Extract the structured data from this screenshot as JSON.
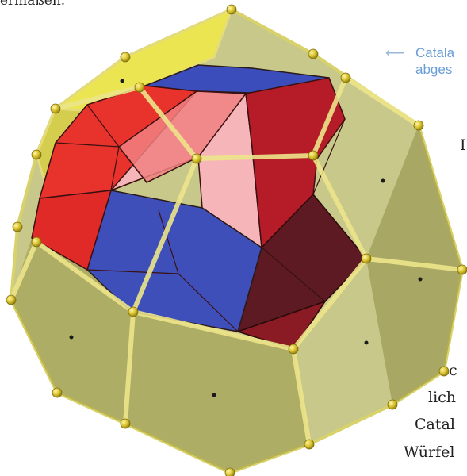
{
  "page": {
    "top_text": "ermaßen.",
    "caption": {
      "arrow": "⟵",
      "line1": "Catala",
      "line2": "abges"
    },
    "fragments": [
      {
        "id": "f1",
        "text": "I"
      },
      {
        "id": "f2",
        "text": "c"
      },
      {
        "id": "f3",
        "text": "lich"
      },
      {
        "id": "f4",
        "text": "Catal"
      },
      {
        "id": "f5",
        "text": "Würfel"
      }
    ]
  }
}
